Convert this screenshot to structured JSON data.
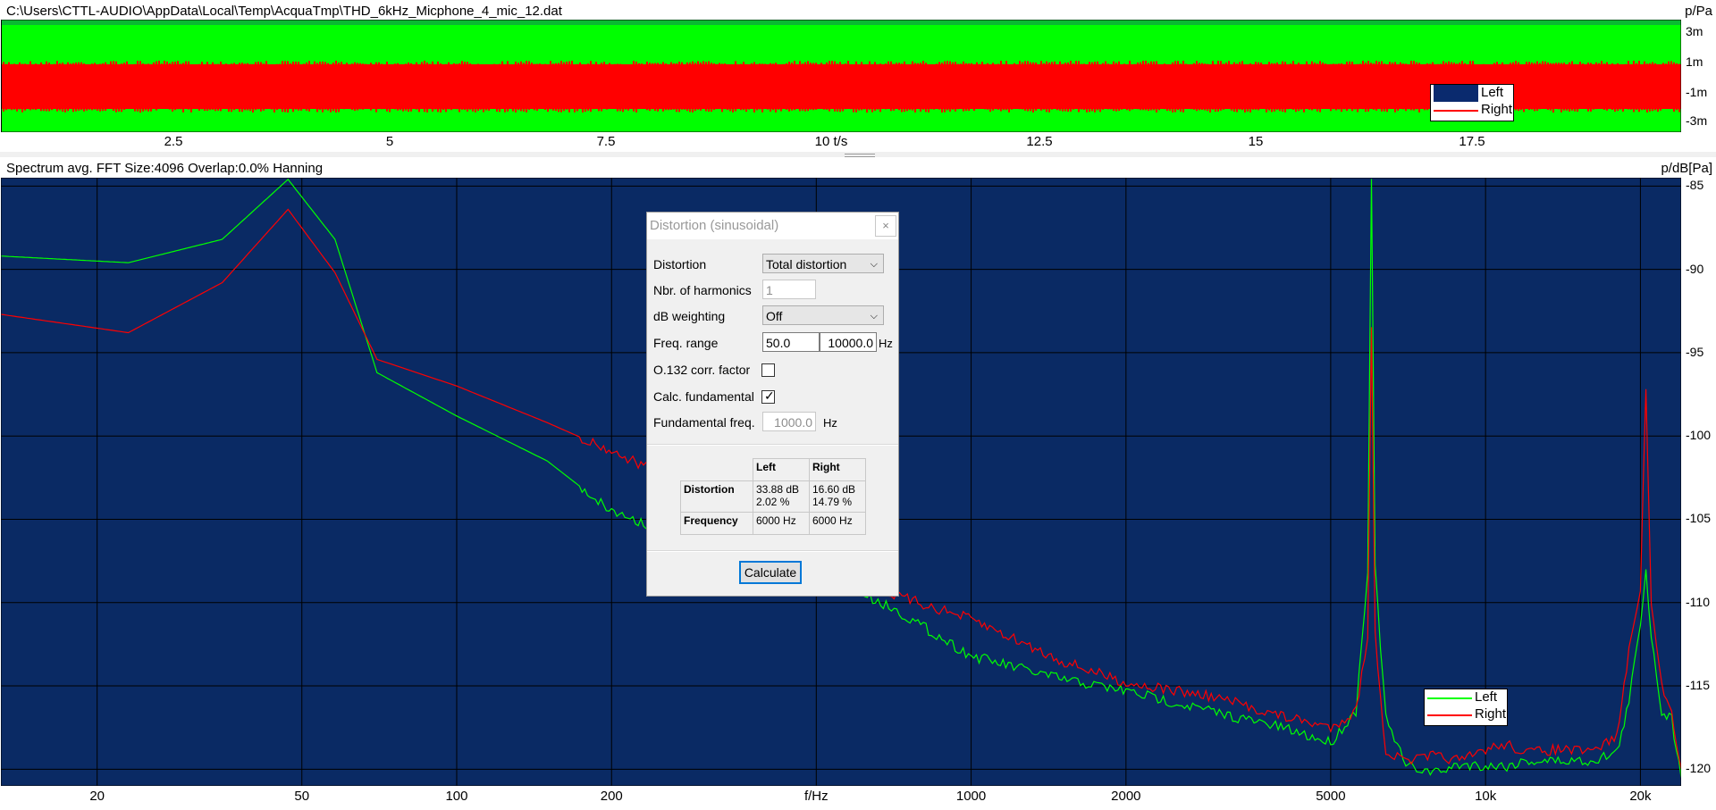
{
  "waveform": {
    "file_path": "C:\\Users\\CTTL-AUDIO\\AppData\\Local\\Temp\\AcquaTmp\\THD_6kHz_Micphone_4_mic_12.dat",
    "unit": "p/Pa",
    "y_ticks": [
      "3m",
      "1m",
      "-1m",
      "-3m"
    ],
    "x_ticks": [
      "2.5",
      "5",
      "7.5",
      "10 t/s",
      "12.5",
      "15",
      "17.5"
    ],
    "legend": [
      "Left",
      "Right"
    ],
    "colors": {
      "left": "#00ff00",
      "right": "#ff0000",
      "background": "#00ff00",
      "legend_left": "#0a2a6e"
    }
  },
  "spectrum": {
    "title": "Spectrum avg.  FFT Size:4096  Overlap:0.0%  Hanning",
    "unit": "p/dB[Pa]",
    "y_ticks": [
      "-85",
      "-90",
      "-95",
      "-100",
      "-105",
      "-110",
      "-115",
      "-120"
    ],
    "x_ticks": [
      "20",
      "50",
      "100",
      "200",
      "f/Hz",
      "1000",
      "2000",
      "5000",
      "10k",
      "20k"
    ],
    "legend": [
      "Left",
      "Right"
    ],
    "colors": {
      "background": "#0a2a64",
      "grid": "#000000",
      "left": "#00ff00",
      "right": "#ff0000"
    }
  },
  "chart_data": {
    "type": "line",
    "xscale": "log",
    "xlim": [
      13,
      24000
    ],
    "ylim": [
      -121,
      -84.5
    ],
    "xlabel": "f/Hz",
    "ylabel": "p/dB[Pa]",
    "grid": true,
    "legend_position": "bottom-right",
    "series": [
      {
        "name": "Left",
        "x": [
          13,
          23,
          35,
          47,
          58,
          70,
          100,
          150,
          200,
          300,
          500,
          700,
          1000,
          1500,
          2000,
          3000,
          4000,
          5000,
          5600,
          5900,
          6000,
          6100,
          6400,
          7000,
          8000,
          9000,
          10000,
          11000,
          12000,
          14000,
          16000,
          18000,
          19000,
          20000,
          20500,
          21000,
          22000,
          23000,
          24000
        ],
        "y": [
          -89.2,
          -89.6,
          -88.2,
          -84.6,
          -88.2,
          -96.2,
          -98.8,
          -101.5,
          -104.5,
          -106.5,
          -108.2,
          -110.3,
          -113.2,
          -114.6,
          -115.3,
          -116.6,
          -117.5,
          -118.4,
          -116.5,
          -108.0,
          -84.5,
          -108.0,
          -117.0,
          -119.8,
          -120.2,
          -119.7,
          -119.8,
          -119.8,
          -119.5,
          -119.5,
          -119.5,
          -119.0,
          -116.0,
          -111.2,
          -108.0,
          -112.0,
          -116.5,
          -117.0,
          -120.5
        ]
      },
      {
        "name": "Right",
        "x": [
          13,
          23,
          35,
          47,
          58,
          70,
          100,
          150,
          200,
          300,
          500,
          700,
          1000,
          1500,
          2000,
          3000,
          4000,
          5000,
          5600,
          5900,
          6000,
          6100,
          6400,
          7000,
          8000,
          9000,
          10000,
          11000,
          12000,
          14000,
          16000,
          18000,
          19000,
          20000,
          20500,
          21000,
          22000,
          23000,
          24000
        ],
        "y": [
          -92.7,
          -93.8,
          -90.8,
          -86.4,
          -90.2,
          -95.4,
          -97.0,
          -99.2,
          -100.9,
          -103.4,
          -106.5,
          -109.5,
          -111.0,
          -113.5,
          -114.8,
          -115.7,
          -116.8,
          -117.5,
          -116.5,
          -112.0,
          -93.5,
          -112.0,
          -119.0,
          -119.5,
          -119.2,
          -119.5,
          -118.8,
          -118.5,
          -119.0,
          -118.8,
          -119.0,
          -118.0,
          -113.0,
          -109.0,
          -97.5,
          -110.0,
          -115.0,
          -116.5,
          -120.0
        ]
      }
    ]
  },
  "dialog": {
    "title": "Distortion (sinusoidal)",
    "close_glyph": "×",
    "distortion_label": "Distortion",
    "distortion_value": "Total distortion",
    "harmonics_label": "Nbr. of harmonics",
    "harmonics_value": "1",
    "weighting_label": "dB weighting",
    "weighting_value": "Off",
    "freq_range_label": "Freq. range",
    "freq_range_low": "50.0",
    "freq_range_high": "10000.0",
    "hz_unit": "Hz",
    "corr_label": "O.132 corr. factor",
    "corr_checked": false,
    "calc_fund_label": "Calc. fundamental",
    "calc_fund_checked": true,
    "check_glyph": "✓",
    "fund_freq_label": "Fundamental freq.",
    "fund_freq_value": "1000.0",
    "results": {
      "col_left": "Left",
      "col_right": "Right",
      "row_distortion": "Distortion",
      "left_db": "33.88 dB",
      "left_pct": "2.02 %",
      "right_db": "16.60 dB",
      "right_pct": "14.79 %",
      "row_frequency": "Frequency",
      "left_freq": "6000 Hz",
      "right_freq": "6000 Hz"
    },
    "calculate_label": "Calculate"
  }
}
